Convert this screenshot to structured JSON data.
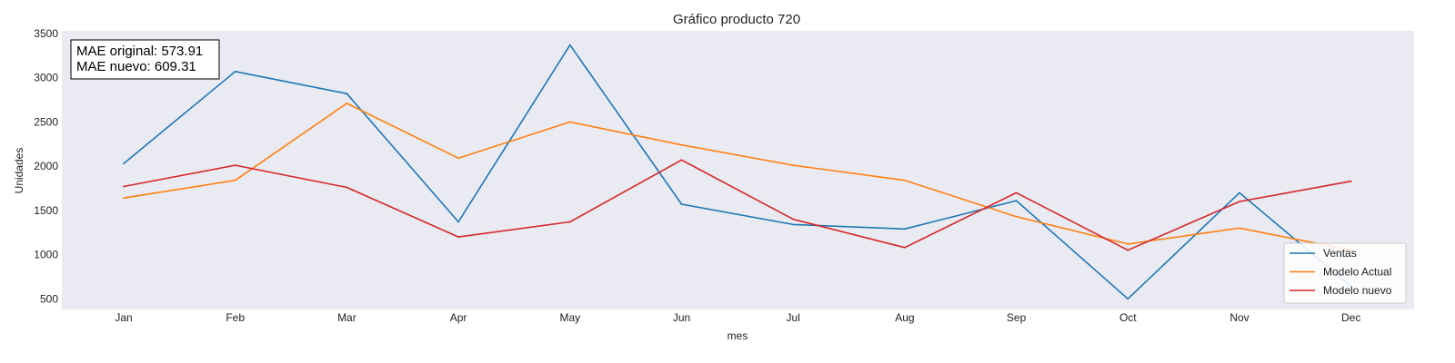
{
  "chart_data": {
    "type": "line",
    "title": "Gráfico producto 720",
    "xlabel": "mes",
    "ylabel": "Unidades",
    "categories": [
      "Jan",
      "Feb",
      "Mar",
      "Apr",
      "May",
      "Jun",
      "Jul",
      "Aug",
      "Sep",
      "Oct",
      "Nov",
      "Dec"
    ],
    "yticks": [
      500,
      1000,
      1500,
      2000,
      2500,
      3000,
      3500
    ],
    "ylim": [
      380,
      3530
    ],
    "grid": false,
    "legend_position": "bottom-right",
    "background_color": "#eaeaf2",
    "series": [
      {
        "name": "Ventas",
        "color": "#1f77b4",
        "values": [
          2030,
          3070,
          2820,
          1370,
          3370,
          1570,
          1340,
          1290,
          1610,
          500,
          1700,
          640
        ]
      },
      {
        "name": "Modelo Actual",
        "color": "#ff7f0e",
        "values": [
          1640,
          1840,
          2710,
          2090,
          2500,
          2240,
          2010,
          1840,
          1430,
          1120,
          1300,
          1050
        ]
      },
      {
        "name": "Modelo nuevo",
        "color": "#d62728",
        "values": [
          1770,
          2010,
          1760,
          1200,
          1370,
          2070,
          1400,
          1080,
          1700,
          1050,
          1600,
          1830
        ]
      }
    ],
    "annotation": [
      "MAE original: 573.91",
      "MAE nuevo: 609.31"
    ]
  }
}
